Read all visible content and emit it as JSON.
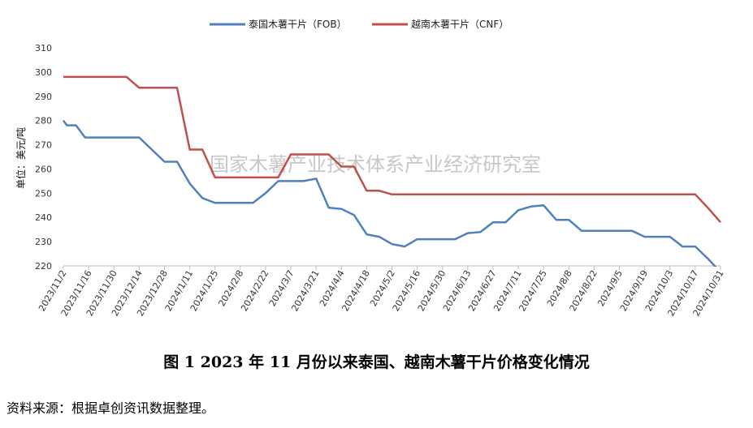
{
  "chart_data": {
    "type": "line",
    "ylabel": "单位：美元/吨",
    "ylim": [
      220,
      310
    ],
    "yticks": [
      220,
      230,
      240,
      250,
      260,
      270,
      280,
      290,
      300,
      310
    ],
    "x_tick_labels": [
      "2023/11/2",
      "2023/11/16",
      "2023/11/30",
      "2023/12/14",
      "2023/12/28",
      "2024/1/11",
      "2024/1/25",
      "2024/2/8",
      "2024/2/22",
      "2024/3/7",
      "2024/3/21",
      "2024/4/4",
      "2024/4/18",
      "2024/5/2",
      "2024/5/16",
      "2024/5/30",
      "2024/6/13",
      "2024/6/27",
      "2024/7/11",
      "2024/7/25",
      "2024/8/8",
      "2024/8/22",
      "2024/9/5",
      "2024/9/19",
      "2024/10/3",
      "2024/10/17",
      "2024/10/31"
    ],
    "grid": false,
    "legend_position": "top",
    "watermark": "国家木薯产业技术体系产业经济研究室",
    "series": [
      {
        "name": "泰国木薯干片（FOB）",
        "color": "#4f81bd",
        "points": [
          [
            "2023/11/2",
            280
          ],
          [
            "2023/11/4",
            278
          ],
          [
            "2023/11/9",
            278
          ],
          [
            "2023/11/14",
            273
          ],
          [
            "2023/11/30",
            273
          ],
          [
            "2023/12/14",
            273
          ],
          [
            "2023/12/21",
            268
          ],
          [
            "2023/12/28",
            263
          ],
          [
            "2024/1/4",
            263
          ],
          [
            "2024/1/11",
            254
          ],
          [
            "2024/1/18",
            248
          ],
          [
            "2024/1/25",
            246
          ],
          [
            "2024/2/1",
            246
          ],
          [
            "2024/2/8",
            246
          ],
          [
            "2024/2/15",
            246
          ],
          [
            "2024/2/22",
            250
          ],
          [
            "2024/2/29",
            255
          ],
          [
            "2024/3/7",
            255
          ],
          [
            "2024/3/14",
            255
          ],
          [
            "2024/3/21",
            256
          ],
          [
            "2024/3/28",
            244
          ],
          [
            "2024/4/4",
            243.5
          ],
          [
            "2024/4/11",
            241
          ],
          [
            "2024/4/18",
            233
          ],
          [
            "2024/4/25",
            232
          ],
          [
            "2024/5/2",
            229
          ],
          [
            "2024/5/9",
            228
          ],
          [
            "2024/5/16",
            231
          ],
          [
            "2024/5/23",
            231
          ],
          [
            "2024/5/30",
            231
          ],
          [
            "2024/6/6",
            231
          ],
          [
            "2024/6/13",
            233.5
          ],
          [
            "2024/6/20",
            234
          ],
          [
            "2024/6/27",
            238
          ],
          [
            "2024/7/4",
            238
          ],
          [
            "2024/7/11",
            243
          ],
          [
            "2024/7/18",
            244.5
          ],
          [
            "2024/7/25",
            245
          ],
          [
            "2024/8/1",
            239
          ],
          [
            "2024/8/8",
            239
          ],
          [
            "2024/8/15",
            234.5
          ],
          [
            "2024/8/22",
            234.5
          ],
          [
            "2024/8/29",
            234.5
          ],
          [
            "2024/9/5",
            234.5
          ],
          [
            "2024/9/12",
            234.5
          ],
          [
            "2024/9/19",
            232
          ],
          [
            "2024/9/26",
            232
          ],
          [
            "2024/10/3",
            232
          ],
          [
            "2024/10/10",
            228
          ],
          [
            "2024/10/17",
            228
          ],
          [
            "2024/10/24",
            223
          ],
          [
            "2024/10/29",
            219
          ]
        ]
      },
      {
        "name": "越南木薯干片（CNF）",
        "color": "#c0504d",
        "points": [
          [
            "2023/11/2",
            298
          ],
          [
            "2023/11/16",
            298
          ],
          [
            "2023/11/30",
            298
          ],
          [
            "2023/12/7",
            298
          ],
          [
            "2023/12/14",
            293.5
          ],
          [
            "2023/12/28",
            293.5
          ],
          [
            "2024/1/4",
            293.5
          ],
          [
            "2024/1/11",
            268
          ],
          [
            "2024/1/18",
            268
          ],
          [
            "2024/1/25",
            256.5
          ],
          [
            "2024/2/8",
            256.5
          ],
          [
            "2024/2/22",
            256.5
          ],
          [
            "2024/2/29",
            256.5
          ],
          [
            "2024/3/7",
            266
          ],
          [
            "2024/3/21",
            266
          ],
          [
            "2024/3/28",
            266
          ],
          [
            "2024/4/4",
            261
          ],
          [
            "2024/4/11",
            261
          ],
          [
            "2024/4/18",
            251
          ],
          [
            "2024/4/25",
            251
          ],
          [
            "2024/5/2",
            249.5
          ],
          [
            "2024/5/16",
            249.5
          ],
          [
            "2024/6/13",
            249.5
          ],
          [
            "2024/7/11",
            249.5
          ],
          [
            "2024/8/8",
            249.5
          ],
          [
            "2024/9/5",
            249.5
          ],
          [
            "2024/10/3",
            249.5
          ],
          [
            "2024/10/17",
            249.5
          ],
          [
            "2024/10/24",
            244
          ],
          [
            "2024/10/31",
            238
          ]
        ]
      }
    ]
  },
  "caption": "图 1    2023 年 11 月份以来泰国、越南木薯干片价格变化情况",
  "source": "资料来源：根据卓创资讯数据整理。"
}
